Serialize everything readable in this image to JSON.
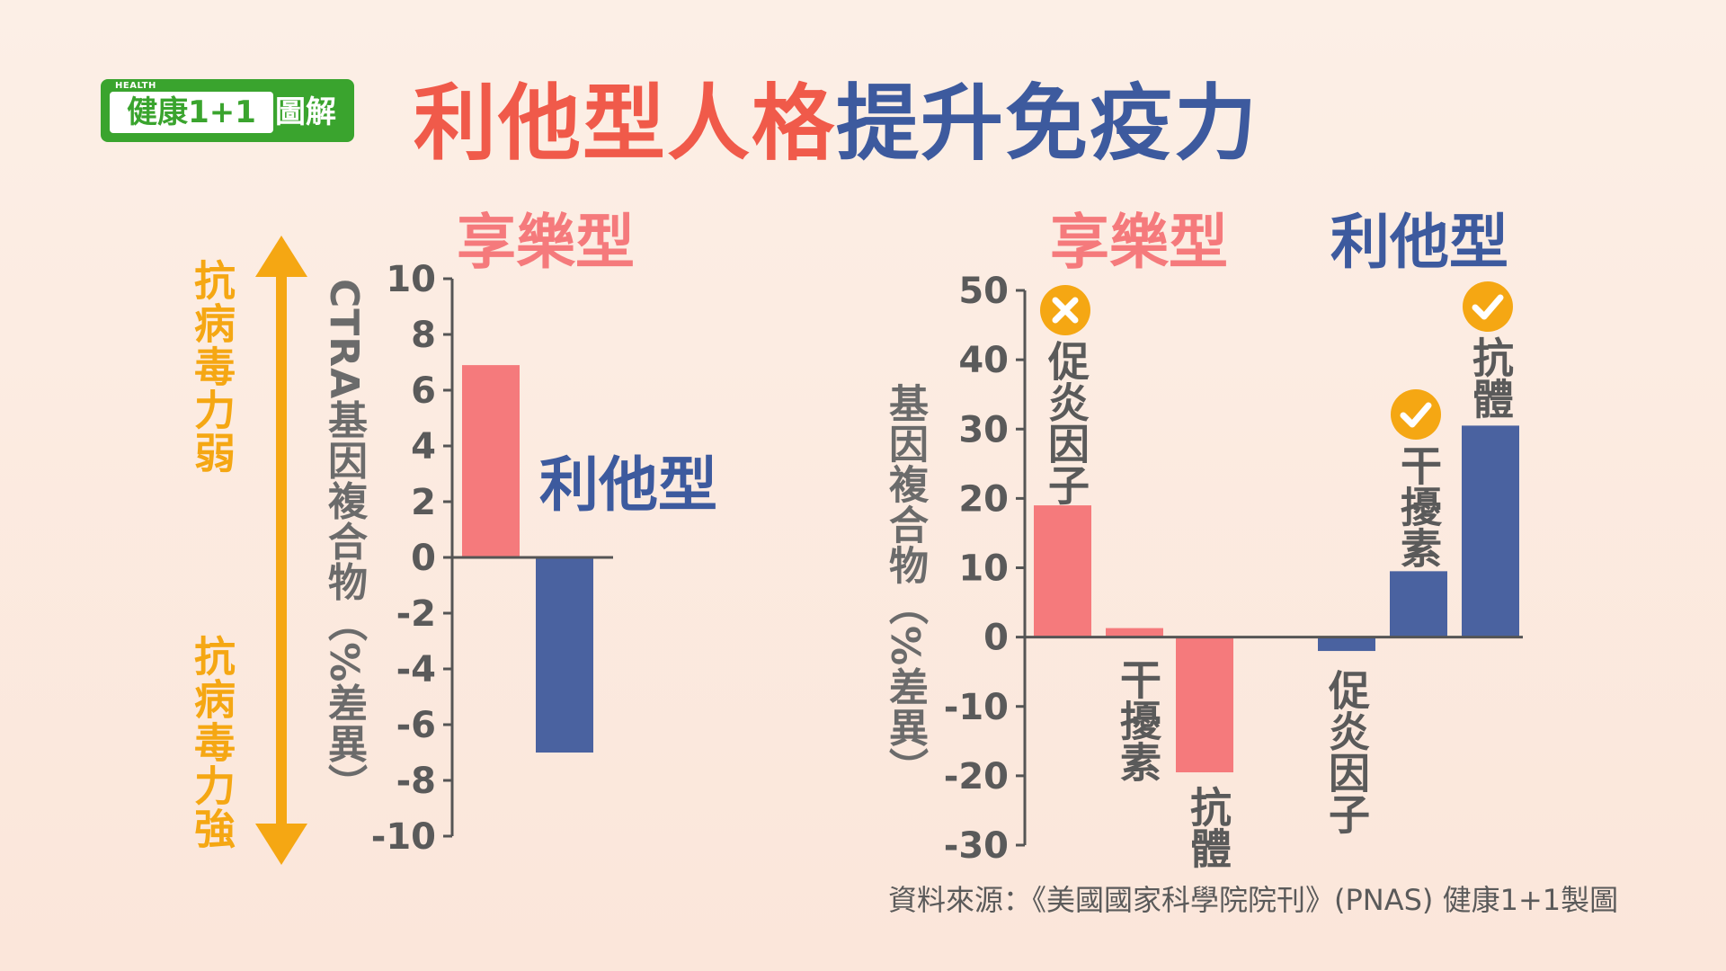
{
  "logo": {
    "health": "HEALTH",
    "main": "健康1+1",
    "tail": "圖解"
  },
  "title": {
    "part1": "利他型人格",
    "part2": "提升免疫力"
  },
  "left_panel": {
    "label_hedonic": "享樂型",
    "label_altruistic": "利他型",
    "arrow_top": "抗病毒力弱",
    "arrow_bottom": "抗病毒力強",
    "y_axis_title": "CTRA基因複合物（%差異）"
  },
  "right_panel": {
    "label_hedonic": "享樂型",
    "label_altruistic": "利他型",
    "y_axis_title": "基因複合物（%差異）",
    "bar_labels": [
      "促炎因子",
      "干擾素",
      "抗體",
      "促炎因子",
      "干擾素",
      "抗體"
    ],
    "marks": [
      "x",
      "",
      "",
      "",
      "check",
      "check"
    ]
  },
  "colors": {
    "hedonic": "#f57a7c",
    "altruistic": "#4a62a0",
    "arrow": "#f5a713",
    "axis": "#555555"
  },
  "chart_data": [
    {
      "type": "bar",
      "categories": [
        "享樂型",
        "利他型"
      ],
      "values": [
        6.9,
        -7
      ],
      "ylabel": "CTRA基因複合物（%差異）",
      "ylim": [
        -10,
        10
      ],
      "yticks": [
        10,
        8,
        6,
        4,
        2,
        0,
        -2,
        -4,
        -6,
        -8,
        -10
      ],
      "ytick_labels": [
        "10",
        "8",
        "6",
        "4",
        "2",
        "0",
        "-2",
        "-4",
        "-6",
        "-8",
        "-10"
      ]
    },
    {
      "type": "bar",
      "categories": [
        "促炎因子",
        "干擾素",
        "抗體",
        "促炎因子",
        "干擾素",
        "抗體"
      ],
      "groups": [
        "享樂型",
        "享樂型",
        "享樂型",
        "利他型",
        "利他型",
        "利他型"
      ],
      "values": [
        19,
        1.3,
        -19.5,
        -2,
        9.5,
        30.5
      ],
      "ylabel": "基因複合物（%差異）",
      "ylim": [
        -30,
        50
      ],
      "yticks": [
        50,
        40,
        30,
        20,
        10,
        0,
        -10,
        -20,
        -30
      ],
      "ytick_labels": [
        "50",
        "40",
        "30",
        "20",
        "10",
        "0",
        "-10",
        "-20",
        "-30"
      ]
    }
  ],
  "source": "資料來源：《美國國家科學院院刊》(PNAS) 健康1+1製圖"
}
